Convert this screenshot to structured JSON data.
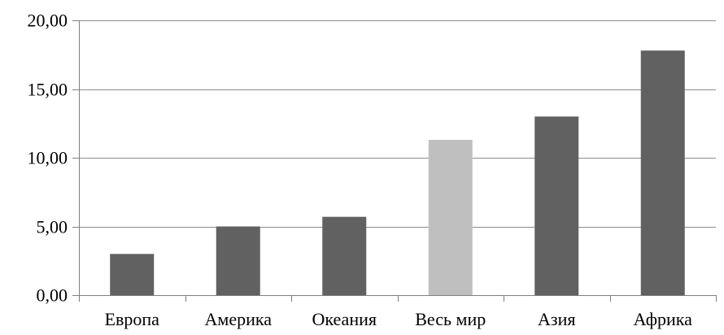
{
  "chart_data": {
    "type": "bar",
    "categories": [
      "Европа",
      "Америка",
      "Океания",
      "Весь мир",
      "Азия",
      "Африка"
    ],
    "values": [
      3.0,
      5.0,
      5.7,
      11.3,
      13.0,
      17.8
    ],
    "highlight_category": "Весь мир",
    "title": "",
    "xlabel": "",
    "ylabel": "",
    "ylim": [
      0,
      20
    ],
    "yticks": [
      0,
      5,
      10,
      15,
      20
    ],
    "ytick_labels": [
      "0,00",
      "5,00",
      "10,00",
      "15,00",
      "20,00"
    ],
    "grid": true,
    "legend": "none",
    "colors": {
      "bar": "#616161",
      "highlight": "#bfbfbf",
      "grid": "#8c8c8c",
      "axis": "#808080"
    }
  }
}
